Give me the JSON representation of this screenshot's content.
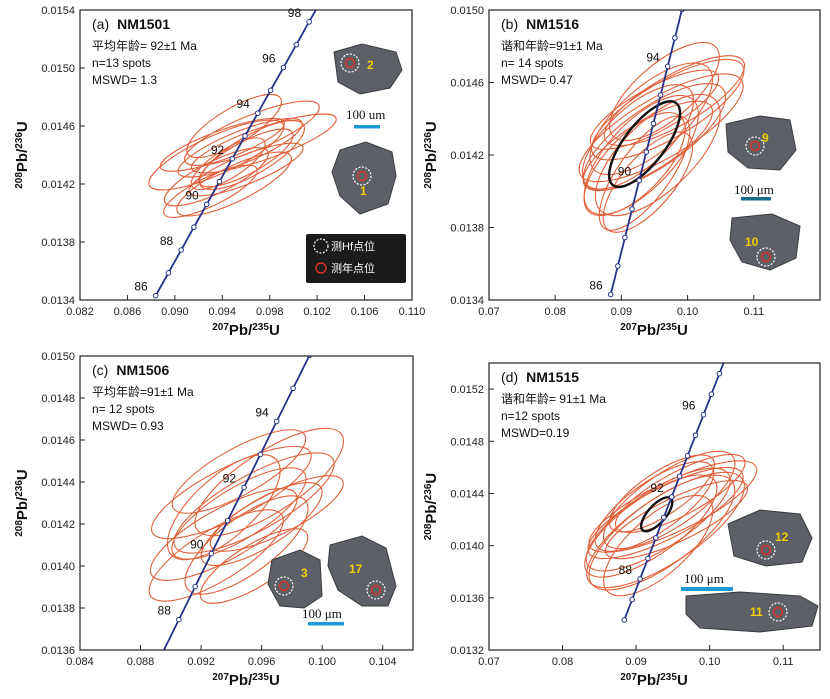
{
  "chart_data": [
    {
      "type": "scatter",
      "panel_label": "(a)",
      "sample": "NM1501",
      "info_lines": [
        "平均年龄= 92±1 Ma",
        "n=13 spots",
        "MSWD= 1.3"
      ],
      "xlabel": "207Pb/235U",
      "ylabel": "208Pb/236U",
      "xlim": [
        0.082,
        0.11
      ],
      "ylim": [
        0.0134,
        0.0154
      ],
      "x_ticks": [
        0.082,
        0.086,
        0.09,
        0.094,
        0.098,
        0.102,
        0.106,
        0.11
      ],
      "y_ticks": [
        0.0134,
        0.0138,
        0.0142,
        0.0146,
        0.015,
        0.0154
      ],
      "x_tick_labels": [
        "0.082",
        "0.086",
        "0.090",
        "0.094",
        "0.098",
        "0.102",
        "0.106",
        "0.110"
      ],
      "y_tick_labels": [
        "0.0134",
        "0.0138",
        "0.0142",
        "0.0146",
        "0.0150",
        "0.0154"
      ],
      "concordia_labels": [
        "86",
        "88",
        "90",
        "92",
        "94",
        "96",
        "98"
      ],
      "concordia_label_ages": [
        86,
        88,
        90,
        92,
        94,
        96,
        98
      ],
      "concordia_ages_min": 86,
      "concordia_ages_max": 99,
      "ellipses": [
        {
          "x": 0.0945,
          "y": 0.01434,
          "sx": 0.0035,
          "sy": 0.00018
        },
        {
          "x": 0.096,
          "y": 0.01438,
          "sx": 0.0045,
          "sy": 0.0002
        },
        {
          "x": 0.0955,
          "y": 0.01445,
          "sx": 0.006,
          "sy": 0.0002
        },
        {
          "x": 0.0935,
          "y": 0.0144,
          "sx": 0.0065,
          "sy": 0.00024
        },
        {
          "x": 0.095,
          "y": 0.0142,
          "sx": 0.0055,
          "sy": 0.00022
        },
        {
          "x": 0.0965,
          "y": 0.01455,
          "sx": 0.0065,
          "sy": 0.00022
        },
        {
          "x": 0.0975,
          "y": 0.01448,
          "sx": 0.007,
          "sy": 0.0002
        },
        {
          "x": 0.0935,
          "y": 0.01425,
          "sx": 0.005,
          "sy": 0.0002
        },
        {
          "x": 0.096,
          "y": 0.0143,
          "sx": 0.0055,
          "sy": 0.00018
        },
        {
          "x": 0.095,
          "y": 0.0146,
          "sx": 0.0045,
          "sy": 0.00022
        },
        {
          "x": 0.094,
          "y": 0.01447,
          "sx": 0.006,
          "sy": 0.00018
        },
        {
          "x": 0.0965,
          "y": 0.0144,
          "sx": 0.005,
          "sy": 0.00024
        },
        {
          "x": 0.093,
          "y": 0.01415,
          "sx": 0.0045,
          "sy": 0.00018
        }
      ],
      "hf_ellipse": null,
      "grains": [
        {
          "label": "2"
        },
        {
          "label": "1"
        }
      ],
      "scale_bar_text": "100 um",
      "legend": [
        "测Hf点位",
        "测年点位"
      ]
    },
    {
      "type": "scatter",
      "panel_label": "(b)",
      "sample": "NM1516",
      "info_lines": [
        "谐和年龄=91±1 Ma",
        "n= 14 spots",
        "MSWD= 0.47"
      ],
      "xlabel": "207Pb/235U",
      "ylabel": "208Pb/236U",
      "xlim": [
        0.07,
        0.12
      ],
      "ylim": [
        0.0134,
        0.015
      ],
      "x_ticks": [
        0.07,
        0.08,
        0.09,
        0.1,
        0.11,
        0.12
      ],
      "y_ticks": [
        0.0134,
        0.0138,
        0.0142,
        0.0146,
        0.015
      ],
      "x_tick_labels": [
        "0.07",
        "0.08",
        "0.09",
        "0.10",
        "0.11",
        ""
      ],
      "y_tick_labels": [
        "0.0134",
        "0.0138",
        "0.0142",
        "0.0146",
        "0.0150"
      ],
      "concordia_labels": [
        "86",
        "90",
        "94"
      ],
      "concordia_label_ages": [
        86,
        90,
        94
      ],
      "concordia_ages_min": 86,
      "concordia_ages_max": 97,
      "ellipses": [
        {
          "x": 0.094,
          "y": 0.01425,
          "sx": 0.011,
          "sy": 0.00025
        },
        {
          "x": 0.095,
          "y": 0.0143,
          "sx": 0.012,
          "sy": 0.0003
        },
        {
          "x": 0.093,
          "y": 0.0142,
          "sx": 0.009,
          "sy": 0.00035
        },
        {
          "x": 0.096,
          "y": 0.01435,
          "sx": 0.014,
          "sy": 0.0003
        },
        {
          "x": 0.092,
          "y": 0.01415,
          "sx": 0.008,
          "sy": 0.0003
        },
        {
          "x": 0.097,
          "y": 0.01445,
          "sx": 0.013,
          "sy": 0.00028
        },
        {
          "x": 0.0945,
          "y": 0.0144,
          "sx": 0.01,
          "sy": 0.00032
        },
        {
          "x": 0.0935,
          "y": 0.0141,
          "sx": 0.007,
          "sy": 0.00035
        },
        {
          "x": 0.098,
          "y": 0.0145,
          "sx": 0.012,
          "sy": 0.00025
        },
        {
          "x": 0.0925,
          "y": 0.0143,
          "sx": 0.009,
          "sy": 0.0003
        },
        {
          "x": 0.0955,
          "y": 0.0142,
          "sx": 0.01,
          "sy": 0.00035
        },
        {
          "x": 0.094,
          "y": 0.01405,
          "sx": 0.007,
          "sy": 0.0003
        },
        {
          "x": 0.0965,
          "y": 0.01455,
          "sx": 0.009,
          "sy": 0.00028
        },
        {
          "x": 0.095,
          "y": 0.01445,
          "sx": 0.011,
          "sy": 0.00022
        }
      ],
      "hf_ellipse": {
        "x": 0.0935,
        "y": 0.01426,
        "sx": 0.0055,
        "sy": 0.00026
      },
      "grains": [
        {
          "label": "9"
        },
        {
          "label": "10"
        }
      ],
      "scale_bar_text": "100 μm",
      "legend": []
    },
    {
      "type": "scatter",
      "panel_label": "(c)",
      "sample": "NM1506",
      "info_lines": [
        "平均年龄=91±1 Ma",
        "n= 12 spots",
        "MSWD= 0.93"
      ],
      "xlabel": "207Pb/235U",
      "ylabel": "208Pb/236U",
      "xlim": [
        0.084,
        0.106
      ],
      "ylim": [
        0.0136,
        0.015
      ],
      "x_ticks": [
        0.084,
        0.088,
        0.092,
        0.096,
        0.1,
        0.104
      ],
      "y_ticks": [
        0.0136,
        0.0138,
        0.014,
        0.0142,
        0.0144,
        0.0146,
        0.0148,
        0.015
      ],
      "x_tick_labels": [
        "0.084",
        "0.088",
        "0.092",
        "0.096",
        "0.100",
        "0.104"
      ],
      "y_tick_labels": [
        "0.0136",
        "0.0138",
        "0.0140",
        "0.0142",
        "0.0144",
        "0.0146",
        "0.0148",
        "0.0150"
      ],
      "concordia_labels": [
        "88",
        "90",
        "92",
        "94"
      ],
      "concordia_label_ages": [
        88,
        90,
        92,
        94
      ],
      "concordia_ages_min": 87,
      "concordia_ages_max": 96,
      "ellipses": [
        {
          "x": 0.0945,
          "y": 0.01425,
          "sx": 0.005,
          "sy": 0.00022
        },
        {
          "x": 0.0955,
          "y": 0.0143,
          "sx": 0.006,
          "sy": 0.00024
        },
        {
          "x": 0.0935,
          "y": 0.01415,
          "sx": 0.0055,
          "sy": 0.00022
        },
        {
          "x": 0.0965,
          "y": 0.0144,
          "sx": 0.0055,
          "sy": 0.00026
        },
        {
          "x": 0.095,
          "y": 0.0141,
          "sx": 0.0045,
          "sy": 0.00024
        },
        {
          "x": 0.094,
          "y": 0.01435,
          "sx": 0.006,
          "sy": 0.00022
        },
        {
          "x": 0.096,
          "y": 0.0142,
          "sx": 0.0045,
          "sy": 0.0002
        },
        {
          "x": 0.093,
          "y": 0.01405,
          "sx": 0.005,
          "sy": 0.00022
        },
        {
          "x": 0.097,
          "y": 0.01425,
          "sx": 0.005,
          "sy": 0.00018
        },
        {
          "x": 0.0945,
          "y": 0.01445,
          "sx": 0.005,
          "sy": 0.0002
        },
        {
          "x": 0.0955,
          "y": 0.014,
          "sx": 0.004,
          "sy": 0.00018
        },
        {
          "x": 0.0935,
          "y": 0.01428,
          "sx": 0.004,
          "sy": 0.00026
        }
      ],
      "hf_ellipse": null,
      "grains": [
        {
          "label": "3"
        },
        {
          "label": "17"
        }
      ],
      "scale_bar_text": "100 μm",
      "legend": []
    },
    {
      "type": "scatter",
      "panel_label": "(d)",
      "sample": "NM1515",
      "info_lines": [
        "谐和年龄= 91±1 Ma",
        "n=12 spots",
        "MSWD=0.19"
      ],
      "xlabel": "207Pb/235U",
      "ylabel": "208Pb/236U",
      "xlim": [
        0.07,
        0.115
      ],
      "ylim": [
        0.0132,
        0.0154
      ],
      "x_ticks": [
        0.07,
        0.08,
        0.09,
        0.1,
        0.11
      ],
      "y_ticks": [
        0.0132,
        0.0136,
        0.014,
        0.0144,
        0.0148,
        0.0152
      ],
      "x_tick_labels": [
        "0.07",
        "0.08",
        "0.09",
        "0.10",
        "0.11"
      ],
      "y_tick_labels": [
        "0.0132",
        "0.0136",
        "0.0140",
        "0.0144",
        "0.0148",
        "0.0152"
      ],
      "concordia_labels": [
        "88",
        "92",
        "96"
      ],
      "concordia_label_ages": [
        88,
        92,
        96
      ],
      "concordia_ages_min": 86,
      "concordia_ages_max": 99,
      "ellipses": [
        {
          "x": 0.093,
          "y": 0.0142,
          "sx": 0.011,
          "sy": 0.0004
        },
        {
          "x": 0.094,
          "y": 0.01425,
          "sx": 0.012,
          "sy": 0.00035
        },
        {
          "x": 0.092,
          "y": 0.01415,
          "sx": 0.01,
          "sy": 0.0004
        },
        {
          "x": 0.095,
          "y": 0.0143,
          "sx": 0.013,
          "sy": 0.00035
        },
        {
          "x": 0.0935,
          "y": 0.0141,
          "sx": 0.011,
          "sy": 0.00045
        },
        {
          "x": 0.0945,
          "y": 0.01435,
          "sx": 0.01,
          "sy": 0.00038
        },
        {
          "x": 0.0925,
          "y": 0.0143,
          "sx": 0.009,
          "sy": 0.00035
        },
        {
          "x": 0.0955,
          "y": 0.0142,
          "sx": 0.011,
          "sy": 0.0003
        },
        {
          "x": 0.093,
          "y": 0.014,
          "sx": 0.008,
          "sy": 0.0004
        },
        {
          "x": 0.096,
          "y": 0.0144,
          "sx": 0.01,
          "sy": 0.0003
        },
        {
          "x": 0.094,
          "y": 0.01412,
          "sx": 0.012,
          "sy": 0.00045
        },
        {
          "x": 0.0935,
          "y": 0.0144,
          "sx": 0.008,
          "sy": 0.0003
        }
      ],
      "hf_ellipse": {
        "x": 0.0928,
        "y": 0.01424,
        "sx": 0.0022,
        "sy": 0.00014
      },
      "grains": [
        {
          "label": "12"
        },
        {
          "label": "11"
        }
      ],
      "scale_bar_text": "100 μm",
      "legend": []
    }
  ],
  "colors": {
    "ellipse": "#e0603a",
    "concordia": "#24348c",
    "hf_ellipse": "#111111",
    "scale_bar": "#1c9ad6",
    "scale_bar_b": "#1a6a8a",
    "grain": "#5d6066",
    "spot_label": "#f0d000"
  }
}
